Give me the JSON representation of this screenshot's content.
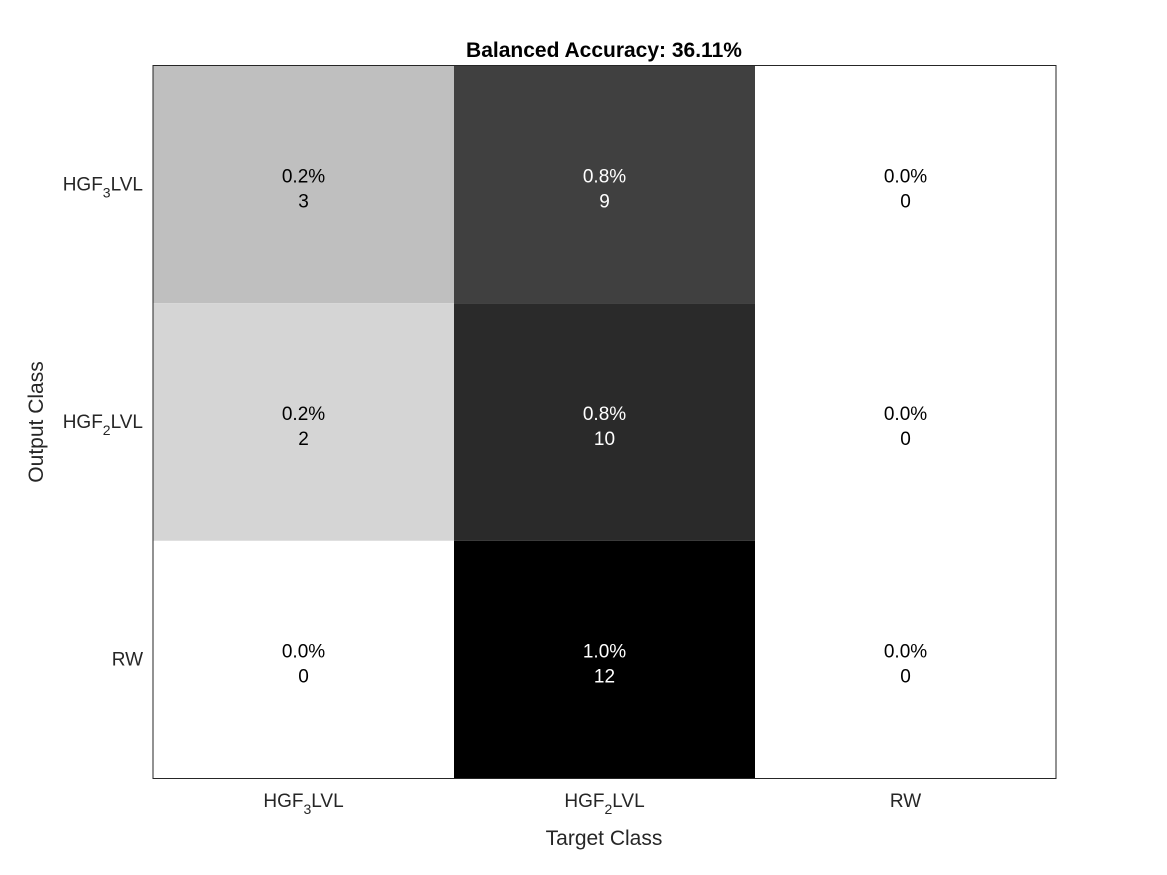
{
  "chart_data": {
    "type": "heatmap",
    "title": "Balanced Accuracy: 36.11%",
    "xlabel": "Target Class",
    "ylabel": "Output Class",
    "x_categories": [
      {
        "base": "HGF",
        "sub": "3",
        "rest": "LVL"
      },
      {
        "base": "HGF",
        "sub": "2",
        "rest": "LVL"
      },
      {
        "base": "RW",
        "sub": "",
        "rest": ""
      }
    ],
    "y_categories": [
      {
        "base": "HGF",
        "sub": "3",
        "rest": "LVL"
      },
      {
        "base": "HGF",
        "sub": "2",
        "rest": "LVL"
      },
      {
        "base": "RW",
        "sub": "",
        "rest": ""
      }
    ],
    "counts": [
      [
        3,
        9,
        0
      ],
      [
        2,
        10,
        0
      ],
      [
        0,
        12,
        0
      ]
    ],
    "percents": [
      [
        "0.2%",
        "0.8%",
        "0.0%"
      ],
      [
        "0.2%",
        "0.8%",
        "0.0%"
      ],
      [
        "0.0%",
        "1.0%",
        "0.0%"
      ]
    ],
    "colormap": "gray-reversed",
    "grid": false,
    "legend": "none"
  }
}
